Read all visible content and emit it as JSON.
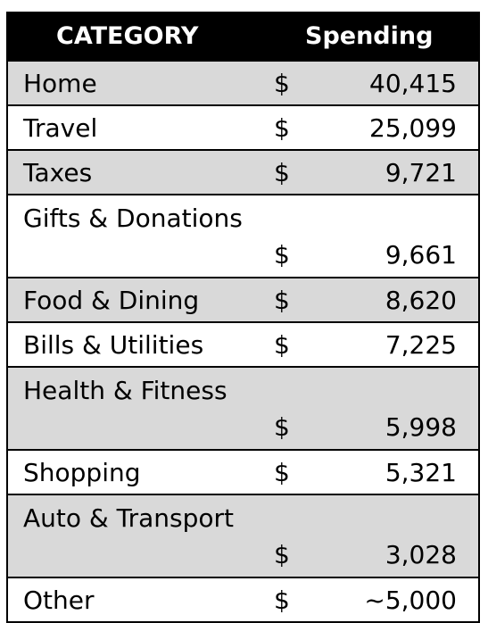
{
  "header": {
    "category": "CATEGORY",
    "spending": "Spending"
  },
  "rows": [
    {
      "category": "Home",
      "currency": "$",
      "amount": "40,415"
    },
    {
      "category": "Travel",
      "currency": "$",
      "amount": "25,099"
    },
    {
      "category": "Taxes",
      "currency": "$",
      "amount": "9,721"
    },
    {
      "category": "Gifts & Donations",
      "currency": "$",
      "amount": "9,661"
    },
    {
      "category": "Food & Dining",
      "currency": "$",
      "amount": "8,620"
    },
    {
      "category": "Bills & Utilities",
      "currency": "$",
      "amount": "7,225"
    },
    {
      "category": "Health & Fitness",
      "currency": "$",
      "amount": "5,998"
    },
    {
      "category": "Shopping",
      "currency": "$",
      "amount": "5,321"
    },
    {
      "category": "Auto & Transport",
      "currency": "$",
      "amount": "3,028"
    },
    {
      "category": "Other",
      "currency": "$",
      "amount": "~5,000"
    }
  ],
  "colors": {
    "header_bg": "#000000",
    "header_text": "#ffffff",
    "shaded_row": "#d9d9d9"
  }
}
